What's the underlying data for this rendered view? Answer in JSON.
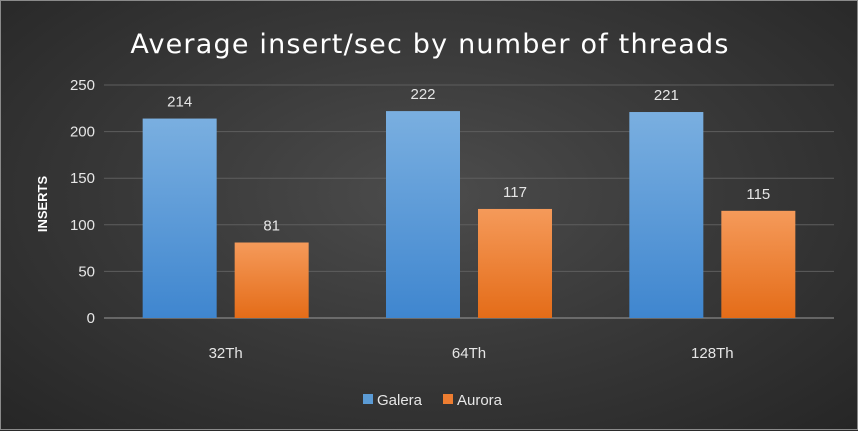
{
  "chart_data": {
    "type": "bar",
    "title": "Average insert/sec by number of threads",
    "ylabel": "INSERTS",
    "xlabel": "",
    "categories": [
      "32Th",
      "64Th",
      "128Th"
    ],
    "series": [
      {
        "name": "Galera",
        "values": [
          214,
          222,
          221
        ],
        "color": "#5b9bd5"
      },
      {
        "name": "Aurora",
        "values": [
          81,
          117,
          115
        ],
        "color": "#ed7d31"
      }
    ],
    "ylim": [
      0,
      250
    ],
    "yticks": [
      0,
      50,
      100,
      150,
      200,
      250
    ],
    "grid": true,
    "legend_position": "bottom",
    "data_labels": true
  }
}
